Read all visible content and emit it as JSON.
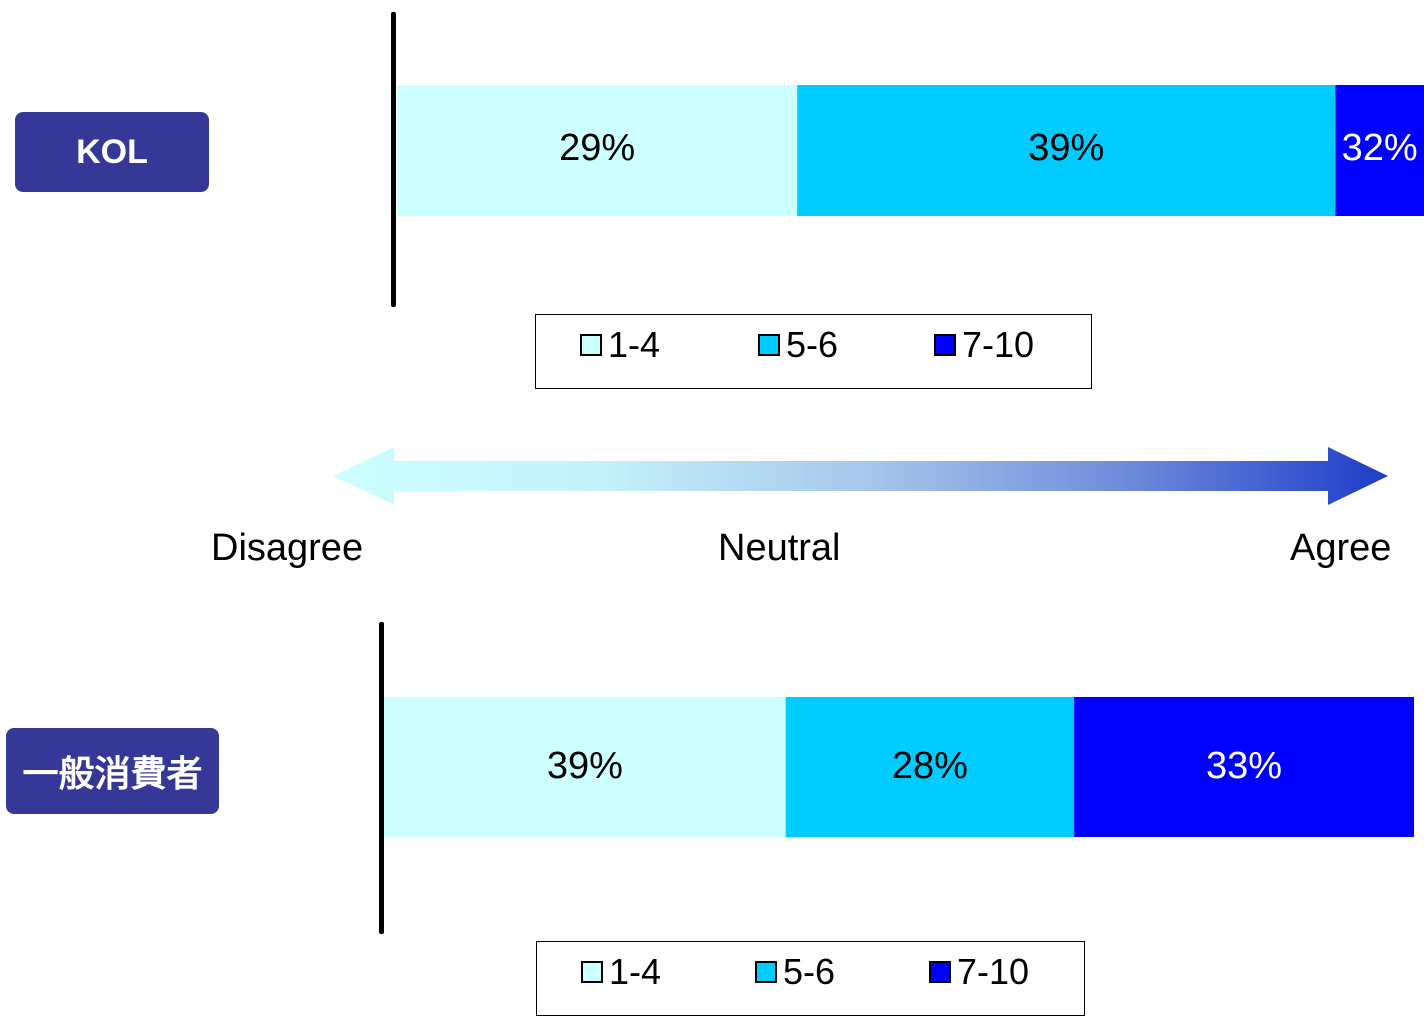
{
  "chart_data": [
    {
      "type": "bar",
      "orientation": "horizontal",
      "stacked": true,
      "group_label": "KOL",
      "categories": [
        "KOL"
      ],
      "series": [
        {
          "name": "1-4",
          "values": [
            29
          ],
          "label": "29%"
        },
        {
          "name": "5-6",
          "values": [
            39
          ],
          "label": "39%"
        },
        {
          "name": "7-10",
          "values": [
            32
          ],
          "label": "32%"
        }
      ],
      "xlim": [
        0,
        100
      ],
      "legend": "bottom"
    },
    {
      "type": "bar",
      "orientation": "horizontal",
      "stacked": true,
      "group_label": "一般消費者",
      "categories": [
        "一般消費者"
      ],
      "series": [
        {
          "name": "1-4",
          "values": [
            39
          ],
          "label": "39%"
        },
        {
          "name": "5-6",
          "values": [
            28
          ],
          "label": "28%"
        },
        {
          "name": "7-10",
          "values": [
            33
          ],
          "label": "33%"
        }
      ],
      "xlim": [
        0,
        100
      ],
      "legend": "bottom"
    }
  ],
  "colors": {
    "1-4": "#ccffff",
    "5-6": "#00ccff",
    "7-10": "#0000ff",
    "group_label_bg": "#353896",
    "arrow_left": "#ccffff",
    "arrow_right": "#1e3cc8"
  },
  "scale": {
    "left": "Disagree",
    "center": "Neutral",
    "right": "Agree"
  }
}
